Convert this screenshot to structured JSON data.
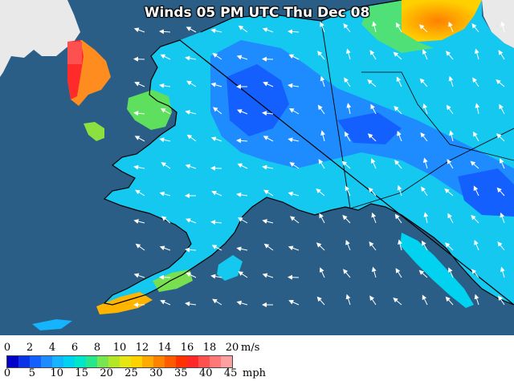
{
  "map": {
    "title": "Winds 05 PM UTC Thu Dec 08",
    "colors": {
      "ocean": "#2a5e86",
      "land_foreign": "#e9e9e9",
      "coast": "#000000"
    }
  },
  "legend": {
    "ms_labels": [
      "0",
      "2",
      "4",
      "6",
      "8",
      "10",
      "12",
      "14",
      "16",
      "18",
      "20"
    ],
    "ms_unit": "m/s",
    "mph_labels": [
      "0",
      "5",
      "10",
      "15",
      "20",
      "25",
      "30",
      "35",
      "40",
      "45"
    ],
    "mph_unit": "mph",
    "scale_colors": [
      "#0000c8",
      "#0a32e6",
      "#1460ff",
      "#1e8cff",
      "#14b4ff",
      "#00d2f0",
      "#00e6c8",
      "#28e68c",
      "#78e650",
      "#b4e628",
      "#e6e614",
      "#ffd200",
      "#ffaa00",
      "#ff8200",
      "#ff5a00",
      "#ff3200",
      "#ff2828",
      "#ff5050",
      "#ff7878",
      "#ffa0a0"
    ]
  }
}
